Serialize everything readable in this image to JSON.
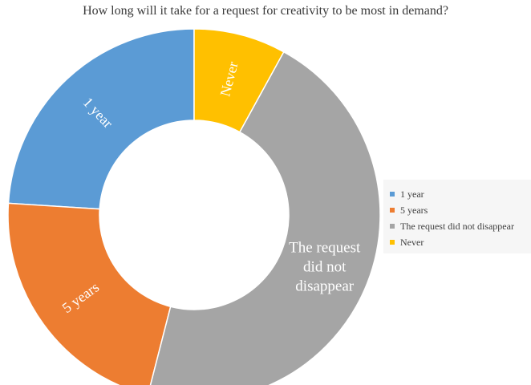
{
  "chart_data": {
    "type": "pie",
    "style": "donut",
    "title": "How long will it take for a request for creativity to be most in demand?",
    "categories": [
      "1 year",
      "5 years",
      "The request did not disappear",
      "Never"
    ],
    "values": [
      24,
      22,
      46,
      8
    ],
    "slice_labels": [
      "1 year",
      "5 years",
      "The request did not disappear",
      "Never"
    ],
    "colors": [
      "#5B9BD5",
      "#ED7D31",
      "#A5A5A5",
      "#FFC000"
    ],
    "legend": {
      "placement": "right",
      "entries": [
        "1 year",
        "5 years",
        "The request did not disappear",
        "Never"
      ]
    }
  }
}
